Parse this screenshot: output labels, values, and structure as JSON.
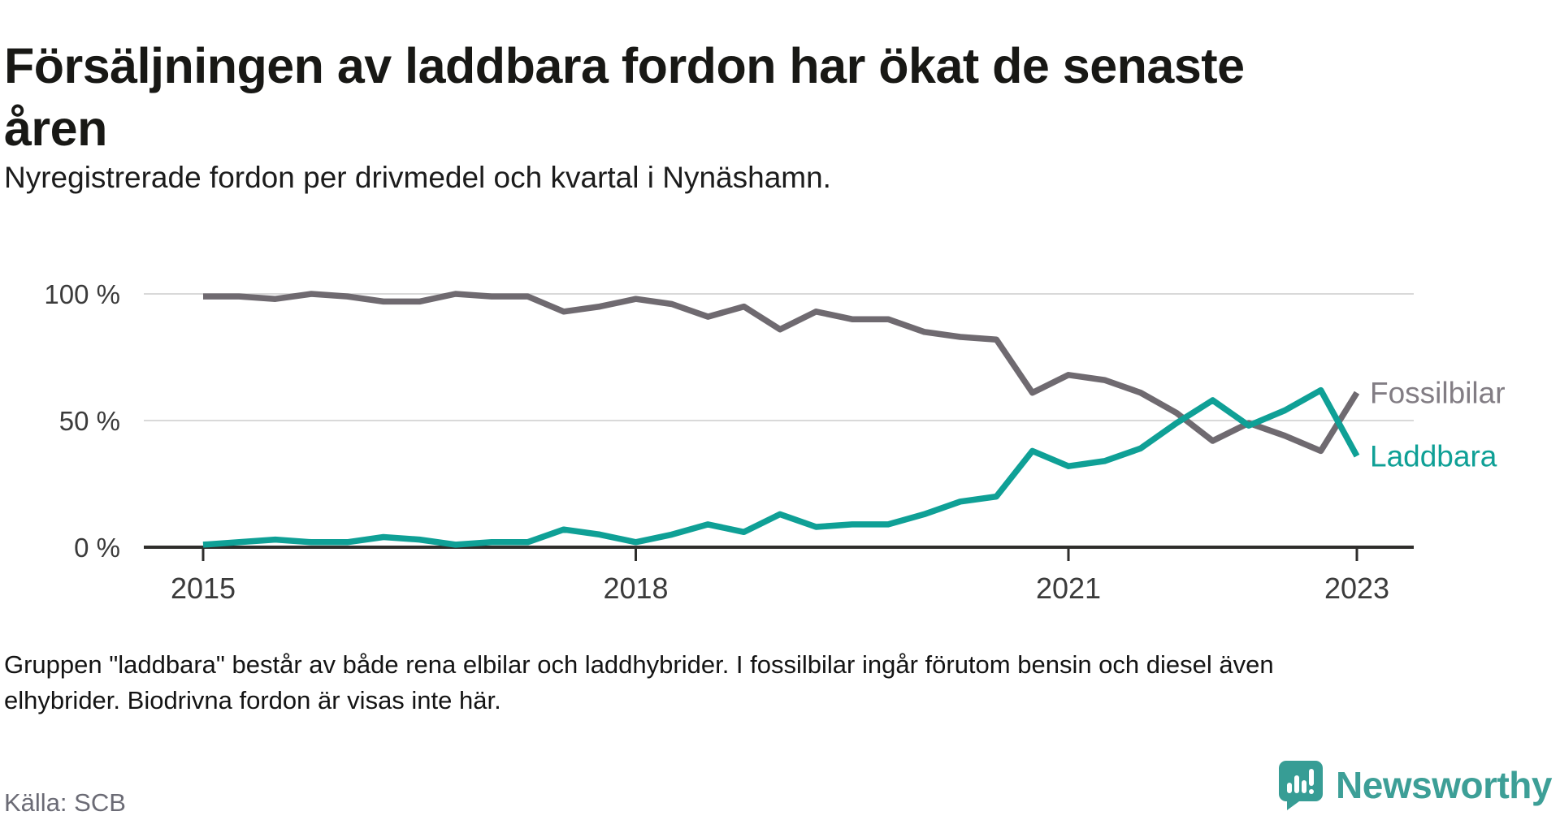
{
  "page": {
    "title_line1": "Försäljningen av laddbara fordon har ökat de senaste",
    "title_line2": "åren",
    "subtitle": "Nyregistrerade fordon per drivmedel och kvartal i Nynäshamn.",
    "footnote_line1": "Gruppen \"laddbara\" består av både rena elbilar och laddhybrider. I fossilbilar ingår förutom bensin och diesel även",
    "footnote_line2": "elhybrider. Biodrivna fordon är visas inte här.",
    "source": "Källa: SCB",
    "brand": {
      "name": "Newsworthy",
      "text_color": "#3d9f97",
      "icon_color": "#379d95",
      "icon": "newsworthy-speech-bubble-chart-icon"
    }
  },
  "chart_data": {
    "type": "line",
    "title": "Försäljningen av laddbara fordon har ökat de senaste åren",
    "subtitle": "Nyregistrerade fordon per drivmedel och kvartal i Nynäshamn.",
    "xlabel": "",
    "ylabel": "",
    "unit": "%",
    "ylim": [
      0,
      100
    ],
    "grid": "horizontal",
    "legend_position": "right-of-line-end",
    "x": [
      "2015Q1",
      "2015Q2",
      "2015Q3",
      "2015Q4",
      "2016Q1",
      "2016Q2",
      "2016Q3",
      "2016Q4",
      "2017Q1",
      "2017Q2",
      "2017Q3",
      "2017Q4",
      "2018Q1",
      "2018Q2",
      "2018Q3",
      "2018Q4",
      "2019Q1",
      "2019Q2",
      "2019Q3",
      "2019Q4",
      "2020Q1",
      "2020Q2",
      "2020Q3",
      "2020Q4",
      "2021Q1",
      "2021Q2",
      "2021Q3",
      "2021Q4",
      "2022Q1",
      "2022Q2",
      "2022Q3",
      "2022Q4",
      "2023Q1"
    ],
    "x_axis_ticks": [
      {
        "label": "2015",
        "index": 0
      },
      {
        "label": "2018",
        "index": 12
      },
      {
        "label": "2021",
        "index": 24
      },
      {
        "label": "2023",
        "index": 32
      }
    ],
    "y_ticks": [
      {
        "label": "0 %",
        "value": 0
      },
      {
        "label": "50 %",
        "value": 50
      },
      {
        "label": "100 %",
        "value": 100
      }
    ],
    "series": [
      {
        "name": "Fossilbilar",
        "color": "#6f6a70",
        "label_color": "#827d84",
        "values": [
          99,
          99,
          98,
          100,
          99,
          97,
          97,
          100,
          99,
          99,
          93,
          95,
          98,
          96,
          91,
          95,
          86,
          93,
          90,
          90,
          85,
          83,
          82,
          61,
          68,
          66,
          61,
          53,
          42,
          49,
          44,
          38,
          61
        ]
      },
      {
        "name": "Laddbara",
        "color": "#0fa096",
        "label_color": "#0fa096",
        "values": [
          1,
          2,
          3,
          2,
          2,
          4,
          3,
          1,
          2,
          2,
          7,
          5,
          2,
          5,
          9,
          6,
          13,
          8,
          9,
          9,
          13,
          18,
          20,
          38,
          32,
          34,
          39,
          49,
          58,
          48,
          54,
          62,
          36
        ]
      }
    ]
  }
}
